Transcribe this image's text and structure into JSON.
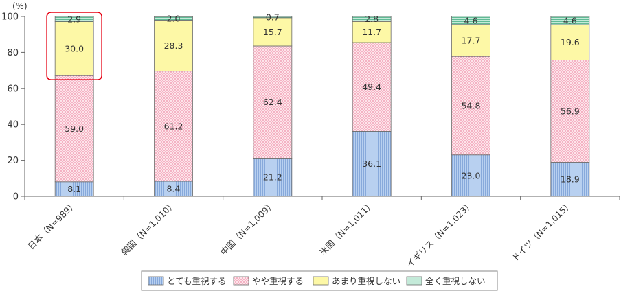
{
  "chart_data": {
    "type": "bar",
    "stacked": true,
    "unit": "(%)",
    "categories": [
      "日本（N=989）",
      "韓国（N=1,010）",
      "中国（N=1,009）",
      "米国（N=1,011）",
      "イギリス（N=1,023）",
      "ドイツ（N=1,015）"
    ],
    "series": [
      {
        "name": "とても重視する",
        "values": [
          8.1,
          8.4,
          21.2,
          36.1,
          23.0,
          18.9
        ],
        "labels": [
          "8.1",
          "8.4",
          "21.2",
          "36.1",
          "23.0",
          "18.9"
        ],
        "color": "#a9c4ea"
      },
      {
        "name": "やや重視する",
        "values": [
          59.0,
          61.2,
          62.4,
          49.4,
          54.8,
          56.9
        ],
        "labels": [
          "59.0",
          "61.2",
          "62.4",
          "49.4",
          "54.8",
          "56.9"
        ],
        "color": "#fbd5de"
      },
      {
        "name": "あまり重視しない",
        "values": [
          30.0,
          28.3,
          15.7,
          11.7,
          17.7,
          19.6
        ],
        "labels": [
          "30.0",
          "28.3",
          "15.7",
          "11.7",
          "17.7",
          "19.6"
        ],
        "color": "#fdf7a0"
      },
      {
        "name": "全く重視しない",
        "values": [
          2.9,
          2.0,
          0.7,
          2.8,
          4.6,
          4.6
        ],
        "labels": [
          "2.9",
          "2.0",
          "0.7",
          "2.8",
          "4.6",
          "4.6"
        ],
        "color": "#a6dcc6"
      }
    ],
    "ylim": [
      0,
      100
    ],
    "yticks": [
      0,
      20,
      40,
      60,
      80,
      100
    ],
    "grid": false,
    "legend": "bottom",
    "highlight": {
      "category_index": 0,
      "series_from": 2,
      "series_to": 3,
      "color": "#e60012"
    }
  }
}
